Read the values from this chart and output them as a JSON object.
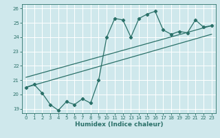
{
  "xlabel": "Humidex (Indice chaleur)",
  "xlim": [
    -0.5,
    23.5
  ],
  "ylim": [
    18.7,
    26.3
  ],
  "yticks": [
    19,
    20,
    21,
    22,
    23,
    24,
    25,
    26
  ],
  "xticks": [
    0,
    1,
    2,
    3,
    4,
    5,
    6,
    7,
    8,
    9,
    10,
    11,
    12,
    13,
    14,
    15,
    16,
    17,
    18,
    19,
    20,
    21,
    22,
    23
  ],
  "bg_color": "#cfe8ec",
  "grid_color": "#ffffff",
  "line_color": "#2a7068",
  "line1_x": [
    0,
    1,
    2,
    3,
    4,
    5,
    6,
    7,
    8,
    9,
    10,
    11,
    12,
    13,
    14,
    15,
    16,
    17,
    18,
    19,
    20,
    21,
    22,
    23
  ],
  "line1_y": [
    20.5,
    20.7,
    20.1,
    19.3,
    18.9,
    19.5,
    19.3,
    19.7,
    19.4,
    21.0,
    24.0,
    25.3,
    25.2,
    24.0,
    25.3,
    25.6,
    25.8,
    24.5,
    24.2,
    24.4,
    24.3,
    25.2,
    24.7,
    24.8
  ],
  "line2_x": [
    0,
    23
  ],
  "line2_y": [
    20.5,
    24.2
  ],
  "line3_x": [
    0,
    23
  ],
  "line3_y": [
    21.2,
    24.8
  ]
}
